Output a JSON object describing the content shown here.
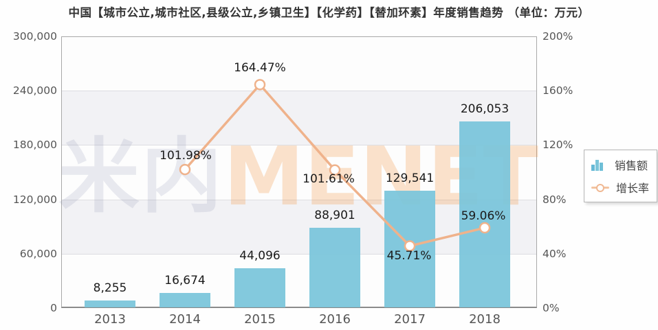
{
  "title": "中国【城市公立,城市社区,县级公立,乡镇卫生】【化学药】【替加环素】年度销售趋势 （单位：万元）",
  "watermark": {
    "cn": "米内",
    "en": "MENET"
  },
  "colors": {
    "bar": "#7ac5da",
    "line": "#efb28b",
    "marker_fill": "#ffffff",
    "band": "#f2f2f5",
    "axis_text": "#555555",
    "label_text": "#1a1a1a"
  },
  "legend": {
    "sales_label": "销售额",
    "growth_label": "增长率"
  },
  "chart_data": {
    "type": "combo-bar-line",
    "title": "中国【城市公立,城市社区,县级公立,乡镇卫生】【化学药】【替加环素】年度销售趋势",
    "unit_note": "（单位：万元）",
    "categories": [
      "2013",
      "2014",
      "2015",
      "2016",
      "2017",
      "2018"
    ],
    "series": [
      {
        "name": "销售额",
        "type": "bar",
        "axis": "left",
        "values": [
          8255,
          16674,
          44096,
          88901,
          129541,
          206053
        ],
        "labels": [
          "8,255",
          "16,674",
          "44,096",
          "88,901",
          "129,541",
          "206,053"
        ]
      },
      {
        "name": "增长率",
        "type": "line",
        "axis": "right",
        "values": [
          null,
          101.98,
          164.47,
          101.61,
          45.71,
          59.06
        ],
        "labels": [
          null,
          "101.98%",
          "164.47%",
          "101.61%",
          "45.71%",
          "59.06%"
        ]
      }
    ],
    "left_axis": {
      "min": 0,
      "max": 300000,
      "tick_labels": [
        "300,000",
        "240,000",
        "180,000",
        "120,000",
        "60,000",
        "0"
      ]
    },
    "right_axis": {
      "min": 0,
      "max": 200,
      "tick_labels": [
        "200%",
        "160%",
        "120%",
        "80%",
        "40%",
        "0%"
      ]
    },
    "grid": true,
    "legend_position": "right"
  }
}
